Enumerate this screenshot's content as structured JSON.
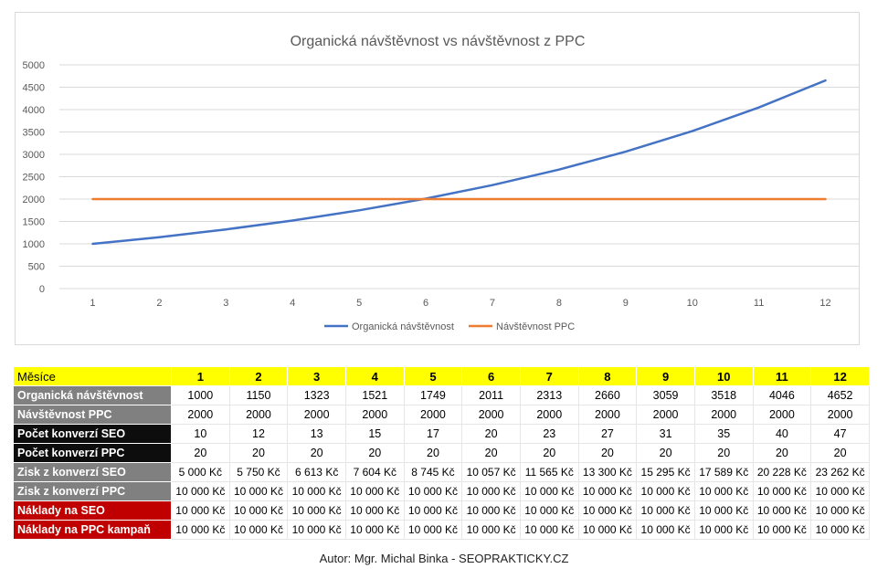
{
  "chart_data": {
    "type": "line",
    "title": "Organická návštěvnost vs návštěvnost z PPC",
    "x": [
      1,
      2,
      3,
      4,
      5,
      6,
      7,
      8,
      9,
      10,
      11,
      12
    ],
    "ylim": [
      0,
      5000
    ],
    "yticks": [
      0,
      500,
      1000,
      1500,
      2000,
      2500,
      3000,
      3500,
      4000,
      4500,
      5000
    ],
    "grid": true,
    "legend_position": "bottom",
    "series": [
      {
        "name": "Organická návštěvnost",
        "color": "#4472c4",
        "values": [
          1000,
          1150,
          1323,
          1521,
          1749,
          2011,
          2313,
          2660,
          3059,
          3518,
          4046,
          4652
        ]
      },
      {
        "name": "Návštěvnost PPC",
        "color": "#ed7d31",
        "values": [
          2000,
          2000,
          2000,
          2000,
          2000,
          2000,
          2000,
          2000,
          2000,
          2000,
          2000,
          2000
        ]
      }
    ]
  },
  "table": {
    "header_label": "Měsíce",
    "months": [
      "1",
      "2",
      "3",
      "4",
      "5",
      "6",
      "7",
      "8",
      "9",
      "10",
      "11",
      "12"
    ],
    "rows": [
      {
        "label": "Organická návštěvnost",
        "style": "grey",
        "values": [
          "1000",
          "1150",
          "1323",
          "1521",
          "1749",
          "2011",
          "2313",
          "2660",
          "3059",
          "3518",
          "4046",
          "4652"
        ]
      },
      {
        "label": "Návštěvnost PPC",
        "style": "grey",
        "values": [
          "2000",
          "2000",
          "2000",
          "2000",
          "2000",
          "2000",
          "2000",
          "2000",
          "2000",
          "2000",
          "2000",
          "2000"
        ]
      },
      {
        "label": "Počet konverzí SEO",
        "style": "black",
        "values": [
          "10",
          "12",
          "13",
          "15",
          "17",
          "20",
          "23",
          "27",
          "31",
          "35",
          "40",
          "47"
        ]
      },
      {
        "label": "Počet konverzí PPC",
        "style": "black",
        "values": [
          "20",
          "20",
          "20",
          "20",
          "20",
          "20",
          "20",
          "20",
          "20",
          "20",
          "20",
          "20"
        ]
      },
      {
        "label": "Zisk z konverzí SEO",
        "style": "grey",
        "values": [
          "5 000 Kč",
          "5 750 Kč",
          "6 613 Kč",
          "7 604 Kč",
          "8 745 Kč",
          "10 057 Kč",
          "11 565 Kč",
          "13 300 Kč",
          "15 295 Kč",
          "17 589 Kč",
          "20 228 Kč",
          "23 262 Kč"
        ]
      },
      {
        "label": "Zisk z konverzí PPC",
        "style": "grey",
        "values": [
          "10 000 Kč",
          "10 000 Kč",
          "10 000 Kč",
          "10 000 Kč",
          "10 000 Kč",
          "10 000 Kč",
          "10 000 Kč",
          "10 000 Kč",
          "10 000 Kč",
          "10 000 Kč",
          "10 000 Kč",
          "10 000 Kč"
        ]
      },
      {
        "label": "Náklady na SEO",
        "style": "red",
        "values": [
          "10 000 Kč",
          "10 000 Kč",
          "10 000 Kč",
          "10 000 Kč",
          "10 000 Kč",
          "10 000 Kč",
          "10 000 Kč",
          "10 000 Kč",
          "10 000 Kč",
          "10 000 Kč",
          "10 000 Kč",
          "10 000 Kč"
        ]
      },
      {
        "label": "Náklady na PPC kampaň",
        "style": "red",
        "values": [
          "10 000 Kč",
          "10 000 Kč",
          "10 000 Kč",
          "10 000 Kč",
          "10 000 Kč",
          "10 000 Kč",
          "10 000 Kč",
          "10 000 Kč",
          "10 000 Kč",
          "10 000 Kč",
          "10 000 Kč",
          "10 000 Kč"
        ]
      }
    ]
  },
  "footer": "Autor: Mgr. Michal Binka - SEOPRAKTICKY.CZ"
}
